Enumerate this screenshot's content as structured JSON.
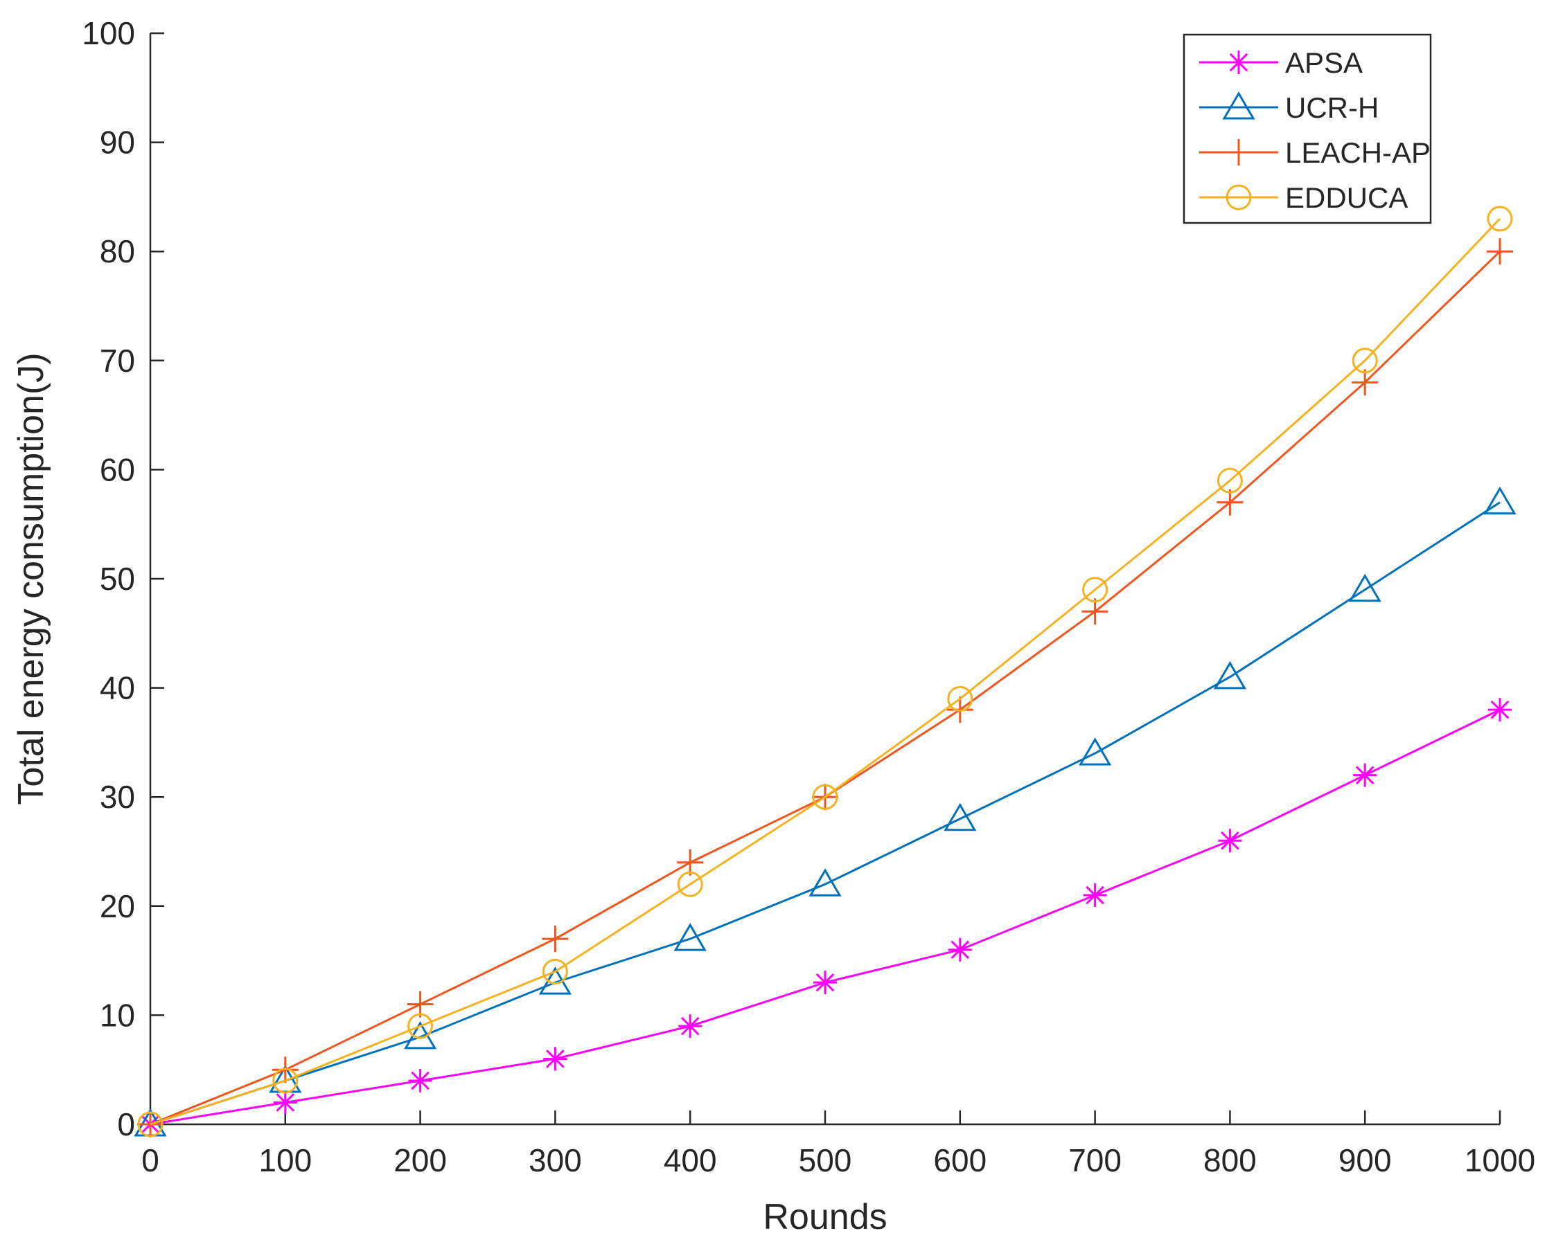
{
  "chart_data": {
    "type": "line",
    "title": "",
    "xlabel": "Rounds",
    "ylabel": "Total energy consumption(J)",
    "xlim": [
      0,
      1000
    ],
    "ylim": [
      0,
      100
    ],
    "xticks": [
      0,
      100,
      200,
      300,
      400,
      500,
      600,
      700,
      800,
      900,
      1000
    ],
    "yticks": [
      0,
      10,
      20,
      30,
      40,
      50,
      60,
      70,
      80,
      90,
      100
    ],
    "x": [
      0,
      100,
      200,
      300,
      400,
      500,
      600,
      700,
      800,
      900,
      1000
    ],
    "grid": false,
    "legend_position": "top-right",
    "series": [
      {
        "name": "APSA",
        "color": "#FF00FF",
        "marker": "asterisk",
        "values": [
          0,
          2,
          4,
          6,
          9,
          13,
          16,
          21,
          26,
          32,
          38
        ]
      },
      {
        "name": "UCR-H",
        "color": "#0072BD",
        "marker": "triangle",
        "values": [
          0,
          4,
          8,
          13,
          17,
          22,
          28,
          34,
          41,
          49,
          57
        ]
      },
      {
        "name": "LEACH-AP",
        "color": "#F0561E",
        "marker": "plus",
        "values": [
          0,
          5,
          11,
          17,
          24,
          30,
          38,
          47,
          57,
          68,
          80
        ]
      },
      {
        "name": "EDDUCA",
        "color": "#F5B120",
        "marker": "circle",
        "values": [
          0,
          4,
          9,
          14,
          22,
          30,
          39,
          49,
          59,
          70,
          83
        ]
      }
    ]
  }
}
